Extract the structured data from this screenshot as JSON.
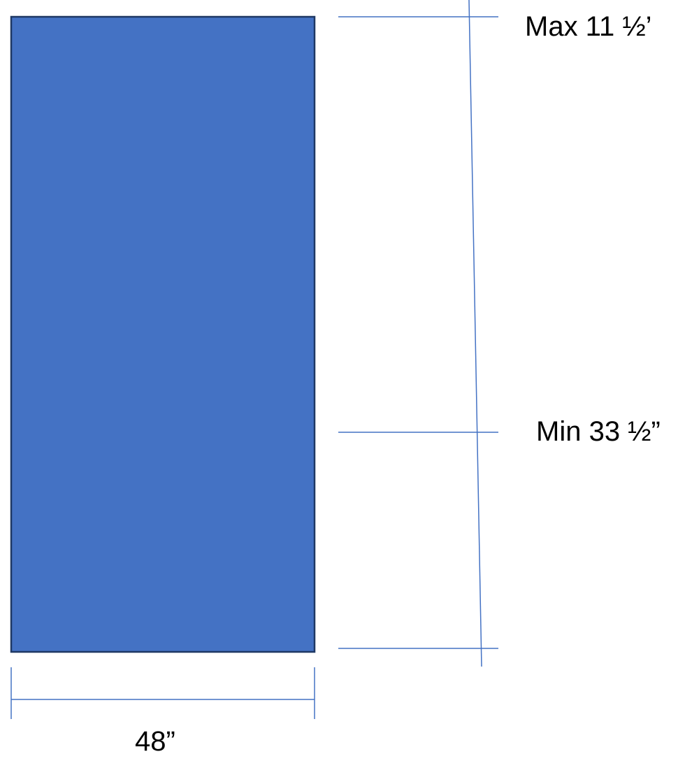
{
  "diagram": {
    "labels": {
      "top_marker": "Max 11 ½’",
      "middle_marker": "Min 33 ½”",
      "width": "48”"
    },
    "colors": {
      "panel_fill": "#4472C4",
      "panel_border": "#1F3864",
      "dimension_line": "#4472C4",
      "text": "#000000"
    }
  }
}
